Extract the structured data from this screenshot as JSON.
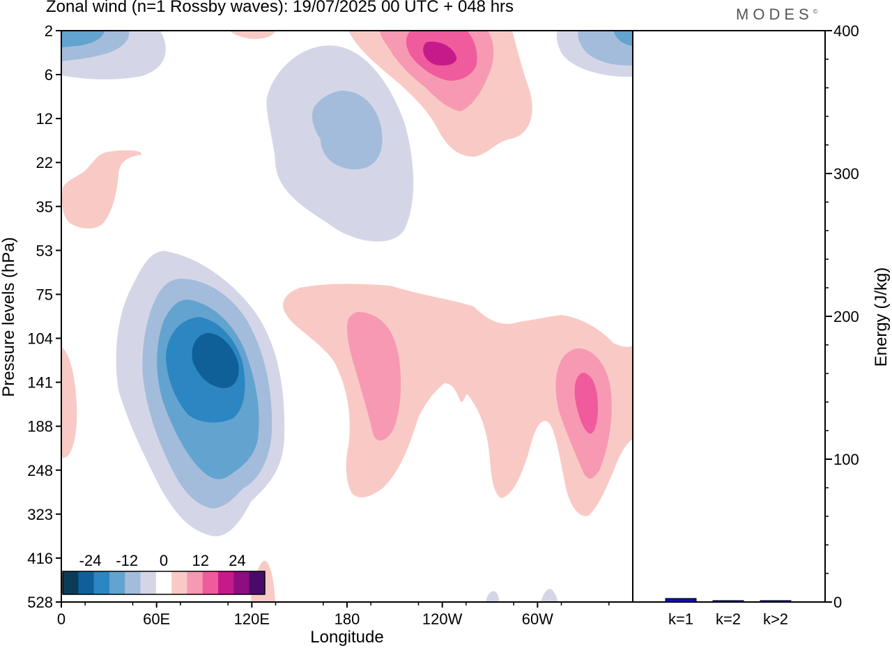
{
  "header": {
    "title": "Zonal wind (n=1 Rossby waves):  19/07/2025  00 UTC  + 048 hrs",
    "logo_text": "MODES",
    "logo_mark": "©"
  },
  "chart_data": [
    {
      "type": "contour",
      "title": "Zonal wind (n=1 Rossby waves):  19/07/2025  00 UTC  + 048 hrs",
      "xlabel": "Longitude",
      "ylabel": "Pressure levels (hPa)",
      "x_ticks": [
        "0",
        "60E",
        "120E",
        "180",
        "120W",
        "60W"
      ],
      "x_tick_values": [
        0,
        60,
        120,
        180,
        240,
        300
      ],
      "xlim": [
        0,
        360
      ],
      "y_ticks": [
        "2",
        "6",
        "12",
        "22",
        "35",
        "53",
        "75",
        "104",
        "141",
        "188",
        "248",
        "323",
        "416",
        "528"
      ],
      "y_scale": "categorical-levels",
      "colorbar": {
        "labels": [
          "-24",
          "-12",
          "0",
          "12",
          "24"
        ],
        "label_values": [
          -24,
          -12,
          0,
          12,
          24
        ],
        "bins": [
          -30,
          -24,
          -18,
          -12,
          -6,
          -3,
          3,
          6,
          12,
          18,
          24,
          30
        ],
        "colors": [
          "#0c3b57",
          "#0f6098",
          "#2c86c2",
          "#63a3cf",
          "#a4bcdb",
          "#d4d6e8",
          "#ffffff",
          "#f9cac5",
          "#f799b2",
          "#ef5b9d",
          "#c51b8a",
          "#8e0d80",
          "#4a0a6a"
        ]
      },
      "features": [
        {
          "name": "negative-core",
          "lon": 100,
          "level": "104-141",
          "min": -24
        },
        {
          "name": "negative-upper",
          "lon": 185,
          "level": "6-22",
          "min": -12
        },
        {
          "name": "positive-upper",
          "lon": 235,
          "level": "2-6",
          "max": 24
        },
        {
          "name": "positive-right",
          "lon": 330,
          "level": "141-188",
          "max": 18
        }
      ]
    },
    {
      "type": "bar",
      "categories": [
        "k=1",
        "k=2",
        "k>2"
      ],
      "values": [
        2.5,
        1,
        1
      ],
      "ylabel": "Energy (J/kg)",
      "ylim": [
        0,
        400
      ],
      "y_ticks": [
        "0",
        "100",
        "200",
        "300",
        "400"
      ],
      "y_tick_values": [
        0,
        100,
        200,
        300,
        400
      ],
      "bar_color": "#1010b0"
    }
  ]
}
